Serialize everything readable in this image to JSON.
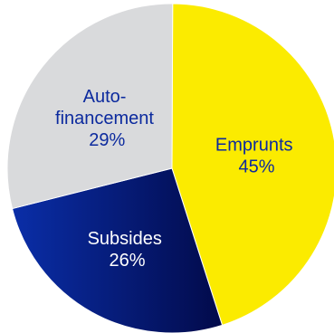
{
  "chart_data": {
    "type": "pie",
    "start": "12 o'clock, clockwise",
    "slices": [
      {
        "label_lines": [
          "Emprunts"
        ],
        "percent_text": "45%",
        "value": 45,
        "color": "#fbeb00",
        "label_color": "#0c2a9e"
      },
      {
        "label_lines": [
          "Subsides"
        ],
        "percent_text": "26%",
        "value": 26,
        "gradient": [
          "#0a2ea8",
          "#020a4a"
        ],
        "label_color": "#ffffff"
      },
      {
        "label_lines": [
          "Auto-",
          "financement"
        ],
        "percent_text": "29%",
        "value": 29,
        "color": "#d9dadc",
        "label_color": "#0c2a9e"
      }
    ]
  }
}
